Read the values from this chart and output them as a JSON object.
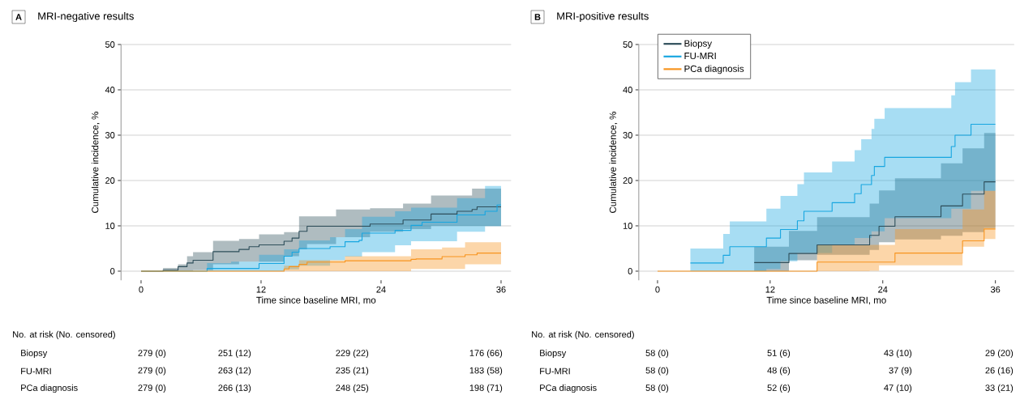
{
  "chart_data": [
    {
      "type": "step",
      "title": "MRI-negative results",
      "xlabel": "Time since baseline MRI, mo",
      "ylabel": "Cumulative incidence, %",
      "xlim": [
        -2,
        37
      ],
      "ylim": [
        -2,
        50
      ],
      "xticks": [
        0,
        12,
        24,
        36
      ],
      "yticks": [
        0,
        10,
        20,
        30,
        40,
        50
      ],
      "grid": "y",
      "line_style": "solid",
      "annotations": [
        "A",
        "No. at risk (No. censored)",
        "Biopsy",
        "279 (0)",
        "251 (12)",
        "229 (22)",
        "176 (66)",
        "FU-MRI",
        "279 (0)",
        "263 (12)",
        "235 (21)",
        "183 (58)",
        "PCa diagnosis",
        "279 (0)",
        "266 (13)",
        "248 (25)",
        "198 (71)"
      ],
      "series": [
        {
          "color": "#2e4e5a",
          "x": [
            0,
            2.2,
            3.7,
            4.6,
            5.2,
            7.2,
            9.8,
            10.8,
            11.8,
            14.3,
            15.1,
            15.8,
            16.6,
            19.5,
            22.9,
            26.2,
            29.0,
            31.6,
            33.1,
            33.6,
            36
          ],
          "values": [
            0,
            0.2,
            1.0,
            1.8,
            2.4,
            4.3,
            4.8,
            5.4,
            5.8,
            6.6,
            7.3,
            8.8,
            9.9,
            9.9,
            10.4,
            11.3,
            12.6,
            13.2,
            13.6,
            14.2,
            14.2
          ],
          "lower": [
            0,
            0,
            0,
            0,
            0.2,
            1.5,
            2.1,
            2.1,
            2.1,
            3.3,
            3.3,
            4.8,
            6.0,
            7.5,
            8.7,
            9.3,
            10.0,
            10.0,
            10.0,
            10.0,
            10.0
          ],
          "upper": [
            0,
            0.7,
            1.5,
            3.3,
            4.2,
            6.7,
            7.1,
            7.1,
            8.1,
            8.6,
            8.6,
            12.1,
            12.1,
            13.6,
            13.9,
            14.9,
            16.7,
            16.7,
            18.2,
            18.2,
            18.2
          ]
        },
        {
          "color": "#17a6e0",
          "x": [
            0,
            6.6,
            9.0,
            11.8,
            14.3,
            15.1,
            15.8,
            18.9,
            20.4,
            21.8,
            22.1,
            25.4,
            27.0,
            28.1,
            31.6,
            34.4,
            35.6,
            36
          ],
          "values": [
            0,
            0.6,
            0.6,
            1.7,
            3.3,
            4.2,
            5.0,
            5.4,
            6.5,
            6.8,
            8.4,
            9.0,
            10.1,
            10.8,
            12.4,
            13.2,
            14.6,
            14.6
          ],
          "lower": [
            0,
            0,
            0,
            0,
            0.4,
            0.4,
            1.2,
            2.4,
            3.2,
            3.2,
            4.2,
            5.7,
            6.6,
            6.6,
            8.7,
            9.9,
            9.9,
            9.9
          ],
          "upper": [
            0,
            1.8,
            2.1,
            3.6,
            4.8,
            4.8,
            6.8,
            7.5,
            9.3,
            9.3,
            12.0,
            13.2,
            14.0,
            14.0,
            16.1,
            18.8,
            18.8,
            18.8
          ]
        },
        {
          "color": "#f7941e",
          "x": [
            0,
            14.3,
            14.8,
            15.8,
            16.6,
            20.4,
            27.0,
            27.5,
            30.1,
            32.4,
            33.6,
            36
          ],
          "values": [
            0,
            0.5,
            1.0,
            1.5,
            2.0,
            2.3,
            2.6,
            2.7,
            3.2,
            3.6,
            4.0,
            4.0
          ],
          "lower": [
            0,
            0,
            0,
            0,
            0,
            0,
            0.5,
            0.5,
            0.5,
            1.5,
            1.5,
            1.5
          ],
          "upper": [
            0,
            1.2,
            1.2,
            2.4,
            2.4,
            3.3,
            4.8,
            4.8,
            5.2,
            6.4,
            6.4,
            6.4
          ]
        }
      ]
    },
    {
      "type": "step",
      "title": "MRI-positive results",
      "xlabel": "Time since baseline MRI, mo",
      "ylabel": "Cumulative incidence, %",
      "xlim": [
        -2,
        38
      ],
      "ylim": [
        -2,
        50
      ],
      "xticks": [
        0,
        12,
        24,
        36
      ],
      "yticks": [
        0,
        10,
        20,
        30,
        40,
        50
      ],
      "grid": "y",
      "line_style": "solid",
      "legend": "top left",
      "annotations": [
        "B",
        "No. at risk (No. censored)",
        "Biopsy",
        "58 (0)",
        "51 (6)",
        "43 (10)",
        "29 (20)",
        "FU-MRI",
        "58 (0)",
        "48 (6)",
        "37 (9)",
        "26 (16)",
        "PCa diagnosis",
        "58 (0)",
        "52 (6)",
        "47 (10)",
        "33 (21)"
      ],
      "series": [
        {
          "name": "Biopsy",
          "color": "#2e4e5a",
          "x": [
            0,
            10.3,
            14.0,
            17.0,
            22.6,
            23.6,
            25.3,
            30.2,
            32.5,
            34.8,
            36
          ],
          "values": [
            null,
            1.9,
            3.9,
            5.8,
            7.9,
            9.9,
            12.0,
            14.4,
            17.0,
            19.7,
            19.7
          ],
          "lower": [
            0,
            0,
            2.4,
            3.6,
            4.7,
            6.4,
            7.0,
            7.8,
            8.6,
            9.5,
            9.5
          ],
          "upper": [
            0,
            5.4,
            8.9,
            11.9,
            14.9,
            17.8,
            20.5,
            23.8,
            27.1,
            30.5,
            30.5
          ]
        },
        {
          "name": "FU-MRI",
          "color": "#17a6e0",
          "x": [
            0,
            3.5,
            7.0,
            7.7,
            11.6,
            13.1,
            14.9,
            15.6,
            18.6,
            21.0,
            21.7,
            22.8,
            23.1,
            24.2,
            31.3,
            31.7,
            33.4,
            36
          ],
          "values": [
            null,
            1.8,
            3.5,
            5.4,
            7.3,
            9.2,
            11.1,
            13.2,
            15.1,
            17.1,
            19.1,
            21.1,
            23.1,
            25.1,
            27.5,
            30.0,
            32.4,
            32.4
          ],
          "lower": [
            0,
            0,
            0,
            0,
            0.5,
            2.2,
            4.0,
            4.0,
            5.8,
            7.3,
            7.3,
            8.8,
            8.8,
            11.7,
            13.8,
            13.8,
            17.7,
            17.7
          ],
          "upper": [
            0,
            5.0,
            8.2,
            11.0,
            13.8,
            16.6,
            19.2,
            21.8,
            24.2,
            26.7,
            29.1,
            31.4,
            33.6,
            36.0,
            38.8,
            41.7,
            44.5,
            44.5
          ]
        },
        {
          "name": "PCa diagnosis",
          "color": "#f7941e",
          "x": [
            0,
            17.0,
            21.0,
            22.6,
            23.6,
            25.3,
            30.2,
            32.5,
            34.8,
            36
          ],
          "values": [
            0,
            2.0,
            2.0,
            2.0,
            2.0,
            4.0,
            4.0,
            6.7,
            9.3,
            9.3
          ],
          "lower": [
            0,
            0,
            0,
            0.1,
            1.3,
            1.3,
            1.3,
            5.4,
            7.1,
            7.1
          ],
          "upper": [
            0,
            5.8,
            5.8,
            5.8,
            5.8,
            9.3,
            9.3,
            13.6,
            17.7,
            17.7
          ]
        }
      ]
    }
  ]
}
